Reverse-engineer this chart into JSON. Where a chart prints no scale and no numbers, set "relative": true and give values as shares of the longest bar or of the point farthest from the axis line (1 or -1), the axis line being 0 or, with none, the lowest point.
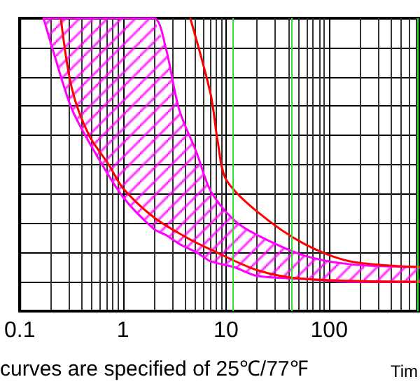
{
  "chart_data": {
    "type": "line",
    "relative": true,
    "log": "x",
    "grid": true,
    "marker": "none",
    "line_style": "solid",
    "xlim": [
      0.1,
      760
    ],
    "xticks": [
      0.1,
      1,
      10,
      100
    ],
    "annotations": [
      "curves are specified of 25℃/77℉",
      "Tim"
    ],
    "ref_lines": [
      {
        "axis": "x",
        "value": 11.7,
        "color": "#33dd33"
      },
      {
        "axis": "x",
        "value": 43,
        "color": "#33dd33"
      },
      {
        "axis": "x",
        "value": 710,
        "color": "#33dd33"
      }
    ],
    "series": [
      {
        "color": "#ff00ff",
        "x": [
          0.17,
          0.21,
          0.32,
          0.54,
          1.0,
          2.0,
          2.6,
          3.5,
          5.2,
          7.1,
          12,
          20,
          57,
          160,
          760
        ],
        "values": [
          1.0,
          0.89,
          0.69,
          0.54,
          0.39,
          0.28,
          0.26,
          0.23,
          0.2,
          0.17,
          0.15,
          0.12,
          0.11,
          0.1,
          0.1
        ],
        "lower": [
          1.0,
          0.89,
          0.69,
          0.54,
          0.39,
          0.28,
          0.26,
          0.23,
          0.2,
          0.17,
          0.15,
          0.12,
          0.11,
          0.1,
          0.1
        ],
        "upper": [
          1.0,
          1.0,
          1.0,
          1.0,
          1.0,
          1.0,
          0.9,
          0.69,
          0.54,
          0.41,
          0.31,
          0.26,
          0.19,
          0.16,
          0.15
        ]
      },
      {
        "color": "#ff0000",
        "x": [
          0.25,
          0.32,
          0.47,
          0.73,
          1.0,
          2.0,
          4.2,
          7.1,
          20,
          57,
          760
        ],
        "values": [
          1.0,
          0.76,
          0.6,
          0.5,
          0.42,
          0.32,
          0.25,
          0.21,
          0.14,
          0.11,
          0.1
        ]
      },
      {
        "color": "#ff00ff",
        "x": [
          0.17,
          0.21,
          0.32,
          0.54,
          1.0,
          2.0,
          2.6,
          3.5,
          5.2,
          7.1,
          12,
          20,
          57,
          160,
          760
        ],
        "values": [
          1.0,
          1.0,
          1.0,
          1.0,
          1.0,
          1.0,
          0.9,
          0.69,
          0.54,
          0.41,
          0.31,
          0.26,
          0.19,
          0.16,
          0.15
        ]
      },
      {
        "color": "#ff0000",
        "x": [
          4.5,
          7.1,
          8.3,
          10,
          20,
          57,
          160,
          760
        ],
        "values": [
          1.0,
          0.74,
          0.58,
          0.45,
          0.34,
          0.23,
          0.17,
          0.15
        ]
      }
    ]
  }
}
